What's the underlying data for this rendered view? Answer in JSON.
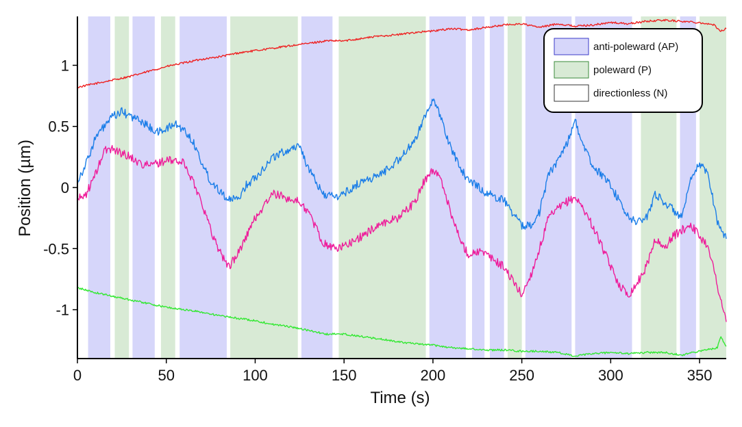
{
  "chart_data": {
    "type": "line",
    "title": "",
    "xlabel": "Time (s)",
    "ylabel": "Position (µm)",
    "xlim": [
      0,
      365
    ],
    "ylim": [
      -1.4,
      1.4
    ],
    "xticks": [
      0,
      50,
      100,
      150,
      200,
      250,
      300,
      350
    ],
    "xtick_labels": [
      "0",
      "50",
      "100",
      "150",
      "200",
      "250",
      "300",
      "350"
    ],
    "yticks": [
      1,
      0.5,
      0,
      -0.5,
      -1
    ],
    "ytick_labels": [
      "1",
      "0.5",
      "0",
      "-0.5",
      "-1"
    ],
    "grid": false,
    "legend": {
      "placement": "top-right",
      "entries": [
        {
          "label": "anti-poleward (AP)",
          "color": "#d6d6fa",
          "stroke": "#3a3ac8"
        },
        {
          "label": "poleward (P)",
          "color": "#d8ead5",
          "stroke": "#3a8a3a"
        },
        {
          "label": "directionless (N)",
          "color": "#ffffff",
          "stroke": "#333333"
        }
      ]
    },
    "colors": {
      "ap": "#d6d6fa",
      "p": "#d8ead5",
      "red": "#ee2222",
      "blue": "#1a7de8",
      "pink": "#ee1c9a",
      "green": "#33e833"
    },
    "bands": [
      {
        "start": 0,
        "end": 6,
        "type": "N"
      },
      {
        "start": 6,
        "end": 18.5,
        "type": "AP"
      },
      {
        "start": 18.5,
        "end": 21,
        "type": "N"
      },
      {
        "start": 21,
        "end": 29,
        "type": "P"
      },
      {
        "start": 29,
        "end": 31,
        "type": "N"
      },
      {
        "start": 31,
        "end": 43.5,
        "type": "AP"
      },
      {
        "start": 43.5,
        "end": 47,
        "type": "N"
      },
      {
        "start": 47,
        "end": 55,
        "type": "P"
      },
      {
        "start": 55,
        "end": 57.5,
        "type": "N"
      },
      {
        "start": 57.5,
        "end": 84,
        "type": "AP"
      },
      {
        "start": 84,
        "end": 86,
        "type": "N"
      },
      {
        "start": 86,
        "end": 124,
        "type": "P"
      },
      {
        "start": 124,
        "end": 126,
        "type": "N"
      },
      {
        "start": 126,
        "end": 143.5,
        "type": "AP"
      },
      {
        "start": 143.5,
        "end": 147,
        "type": "N"
      },
      {
        "start": 147,
        "end": 196,
        "type": "P"
      },
      {
        "start": 196,
        "end": 198,
        "type": "N"
      },
      {
        "start": 198,
        "end": 218.5,
        "type": "AP"
      },
      {
        "start": 218.5,
        "end": 222,
        "type": "N"
      },
      {
        "start": 222,
        "end": 229,
        "type": "AP"
      },
      {
        "start": 229,
        "end": 232,
        "type": "N"
      },
      {
        "start": 232,
        "end": 240,
        "type": "AP"
      },
      {
        "start": 240,
        "end": 242,
        "type": "N"
      },
      {
        "start": 242,
        "end": 250,
        "type": "P"
      },
      {
        "start": 250,
        "end": 252,
        "type": "N"
      },
      {
        "start": 252,
        "end": 278,
        "type": "AP"
      },
      {
        "start": 278,
        "end": 280,
        "type": "N"
      },
      {
        "start": 280,
        "end": 312,
        "type": "AP"
      },
      {
        "start": 312,
        "end": 317,
        "type": "N"
      },
      {
        "start": 317,
        "end": 337,
        "type": "P"
      },
      {
        "start": 337,
        "end": 339,
        "type": "N"
      },
      {
        "start": 339,
        "end": 348,
        "type": "AP"
      },
      {
        "start": 348,
        "end": 350,
        "type": "N"
      },
      {
        "start": 350,
        "end": 365,
        "type": "P"
      }
    ],
    "series": [
      {
        "color": "#ee2222",
        "x": [
          0,
          10,
          20,
          30,
          40,
          50,
          60,
          70,
          80,
          90,
          100,
          110,
          120,
          130,
          140,
          150,
          160,
          170,
          180,
          190,
          200,
          210,
          220,
          230,
          240,
          250,
          260,
          270,
          280,
          290,
          300,
          310,
          320,
          330,
          340,
          350,
          358,
          362,
          365
        ],
        "y": [
          0.82,
          0.85,
          0.88,
          0.91,
          0.95,
          0.99,
          1.02,
          1.05,
          1.07,
          1.1,
          1.12,
          1.14,
          1.16,
          1.18,
          1.2,
          1.2,
          1.22,
          1.24,
          1.25,
          1.27,
          1.28,
          1.3,
          1.29,
          1.31,
          1.33,
          1.34,
          1.31,
          1.34,
          1.32,
          1.33,
          1.35,
          1.34,
          1.36,
          1.37,
          1.36,
          1.35,
          1.33,
          1.28,
          1.3
        ]
      },
      {
        "color": "#1a7de8",
        "x": [
          0,
          5,
          10,
          15,
          20,
          25,
          30,
          35,
          40,
          45,
          50,
          55,
          60,
          65,
          70,
          75,
          80,
          85,
          90,
          95,
          100,
          110,
          125,
          130,
          138,
          145,
          150,
          160,
          170,
          180,
          190,
          195,
          200,
          205,
          210,
          215,
          220,
          225,
          230,
          240,
          250,
          255,
          260,
          265,
          270,
          275,
          280,
          285,
          290,
          295,
          300,
          305,
          310,
          315,
          320,
          325,
          330,
          335,
          340,
          345,
          350,
          355,
          360,
          365
        ],
        "y": [
          0.05,
          0.2,
          0.4,
          0.5,
          0.58,
          0.62,
          0.58,
          0.55,
          0.5,
          0.45,
          0.48,
          0.52,
          0.47,
          0.38,
          0.2,
          0.05,
          -0.02,
          -0.1,
          -0.1,
          0.02,
          0.08,
          0.25,
          0.35,
          0.15,
          -0.05,
          -0.08,
          -0.05,
          0.05,
          0.1,
          0.22,
          0.38,
          0.58,
          0.72,
          0.55,
          0.32,
          0.18,
          0.05,
          0.02,
          -0.05,
          -0.1,
          -0.32,
          -0.3,
          -0.2,
          0.1,
          0.22,
          0.35,
          0.55,
          0.32,
          0.18,
          0.1,
          0.02,
          -0.12,
          -0.25,
          -0.28,
          -0.25,
          -0.05,
          -0.12,
          -0.18,
          -0.25,
          0.05,
          0.2,
          0.1,
          -0.28,
          -0.42
        ]
      },
      {
        "color": "#ee1c9a",
        "x": [
          0,
          5,
          10,
          15,
          20,
          25,
          30,
          35,
          40,
          45,
          50,
          55,
          60,
          65,
          70,
          75,
          80,
          85,
          90,
          95,
          100,
          110,
          125,
          130,
          138,
          145,
          150,
          160,
          170,
          180,
          190,
          195,
          200,
          205,
          210,
          215,
          220,
          225,
          230,
          240,
          250,
          255,
          260,
          265,
          270,
          275,
          280,
          285,
          290,
          295,
          300,
          305,
          310,
          315,
          320,
          325,
          330,
          335,
          340,
          345,
          350,
          355,
          360,
          365
        ],
        "y": [
          -0.1,
          -0.05,
          0.1,
          0.3,
          0.32,
          0.28,
          0.25,
          0.2,
          0.18,
          0.2,
          0.22,
          0.22,
          0.2,
          0.05,
          -0.12,
          -0.35,
          -0.52,
          -0.65,
          -0.55,
          -0.4,
          -0.25,
          -0.05,
          -0.12,
          -0.2,
          -0.45,
          -0.5,
          -0.48,
          -0.4,
          -0.3,
          -0.25,
          -0.12,
          0.05,
          0.15,
          0.05,
          -0.2,
          -0.42,
          -0.55,
          -0.52,
          -0.55,
          -0.65,
          -0.88,
          -0.72,
          -0.5,
          -0.25,
          -0.18,
          -0.12,
          -0.08,
          -0.18,
          -0.32,
          -0.48,
          -0.65,
          -0.8,
          -0.88,
          -0.78,
          -0.65,
          -0.42,
          -0.5,
          -0.4,
          -0.35,
          -0.3,
          -0.4,
          -0.48,
          -0.8,
          -1.1
        ]
      },
      {
        "color": "#33e833",
        "x": [
          0,
          10,
          20,
          30,
          40,
          50,
          60,
          70,
          80,
          90,
          100,
          110,
          120,
          130,
          140,
          150,
          160,
          170,
          180,
          190,
          200,
          210,
          220,
          230,
          240,
          250,
          260,
          270,
          280,
          290,
          300,
          310,
          320,
          330,
          340,
          350,
          360,
          362,
          365
        ],
        "y": [
          -0.82,
          -0.86,
          -0.89,
          -0.92,
          -0.95,
          -0.98,
          -1.0,
          -1.02,
          -1.05,
          -1.07,
          -1.09,
          -1.12,
          -1.14,
          -1.17,
          -1.2,
          -1.2,
          -1.22,
          -1.24,
          -1.26,
          -1.28,
          -1.29,
          -1.31,
          -1.32,
          -1.33,
          -1.33,
          -1.34,
          -1.34,
          -1.35,
          -1.38,
          -1.36,
          -1.35,
          -1.36,
          -1.35,
          -1.35,
          -1.37,
          -1.34,
          -1.31,
          -1.22,
          -1.3
        ]
      }
    ]
  }
}
